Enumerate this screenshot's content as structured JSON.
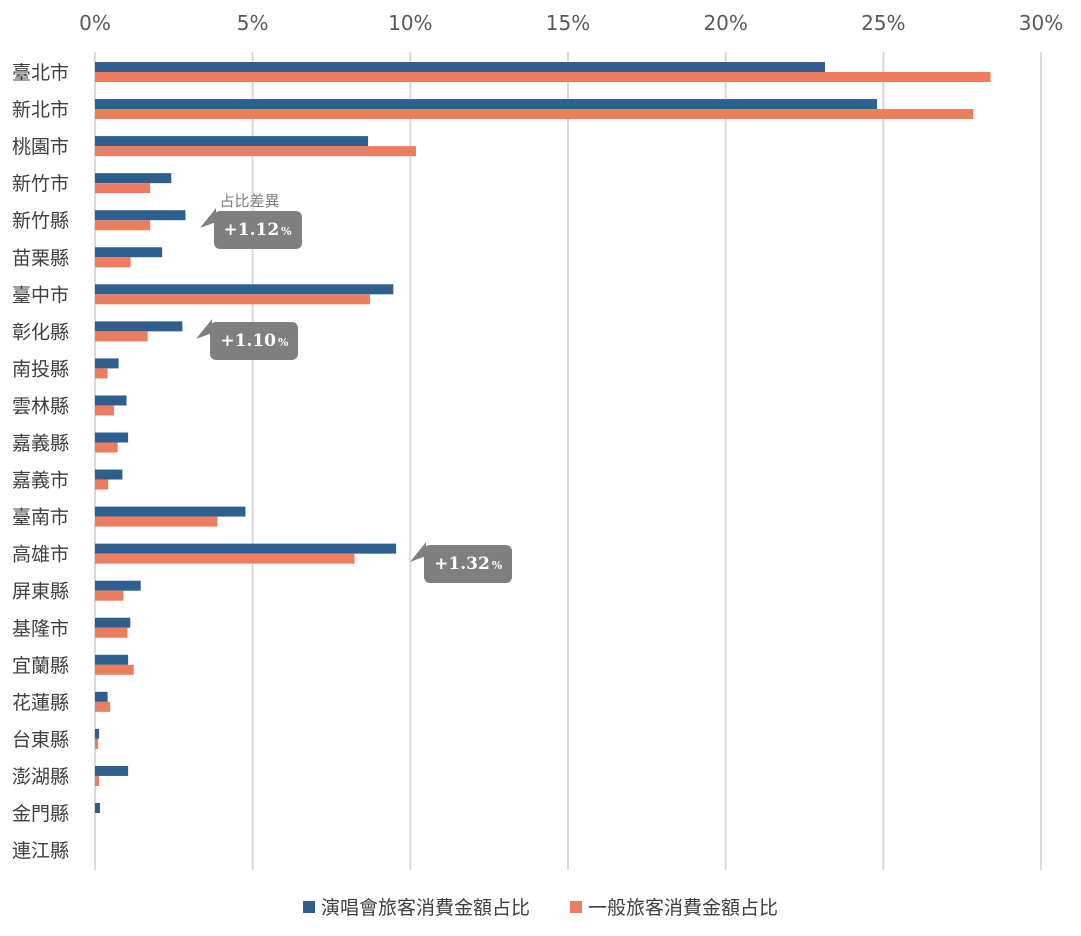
{
  "chart_data": {
    "type": "bar",
    "orientation": "horizontal",
    "title": "",
    "xlabel": "",
    "ylabel": "",
    "xlim": [
      0,
      30
    ],
    "x_ticks": [
      0,
      5,
      10,
      15,
      20,
      25,
      30
    ],
    "x_tick_labels": [
      "0%",
      "5%",
      "10%",
      "15%",
      "20%",
      "25%",
      "30%"
    ],
    "grid": true,
    "legend_position": "bottom",
    "categories": [
      "臺北市",
      "新北市",
      "桃園市",
      "新竹市",
      "新竹縣",
      "苗栗縣",
      "臺中市",
      "彰化縣",
      "南投縣",
      "雲林縣",
      "嘉義縣",
      "嘉義市",
      "臺南市",
      "高雄市",
      "屏東縣",
      "基隆市",
      "宜蘭縣",
      "花蓮縣",
      "台東縣",
      "澎湖縣",
      "金門縣",
      "連江縣"
    ],
    "series": [
      {
        "name": "演唱會旅客消費金額占比",
        "color": "#2f5f8f",
        "values": [
          23.15,
          24.8,
          8.66,
          2.42,
          2.87,
          2.13,
          9.46,
          2.77,
          0.75,
          1.0,
          1.05,
          0.87,
          4.77,
          9.55,
          1.45,
          1.12,
          1.05,
          0.4,
          0.13,
          1.05,
          0.16,
          0
        ]
      },
      {
        "name": "一般旅客消費金額占比",
        "color": "#ed7d5f",
        "values": [
          28.4,
          27.85,
          10.18,
          1.75,
          1.75,
          1.13,
          8.72,
          1.67,
          0.4,
          0.6,
          0.72,
          0.42,
          3.88,
          8.23,
          0.9,
          1.03,
          1.23,
          0.48,
          0.1,
          0.13,
          0,
          0
        ]
      }
    ],
    "annotations": [
      {
        "category": "新竹縣",
        "title": "占比差異",
        "value": "+1.12",
        "unit": "%"
      },
      {
        "category": "彰化縣",
        "title": "",
        "value": "+1.10",
        "unit": "%"
      },
      {
        "category": "高雄市",
        "title": "",
        "value": "+1.32",
        "unit": "%"
      }
    ]
  }
}
